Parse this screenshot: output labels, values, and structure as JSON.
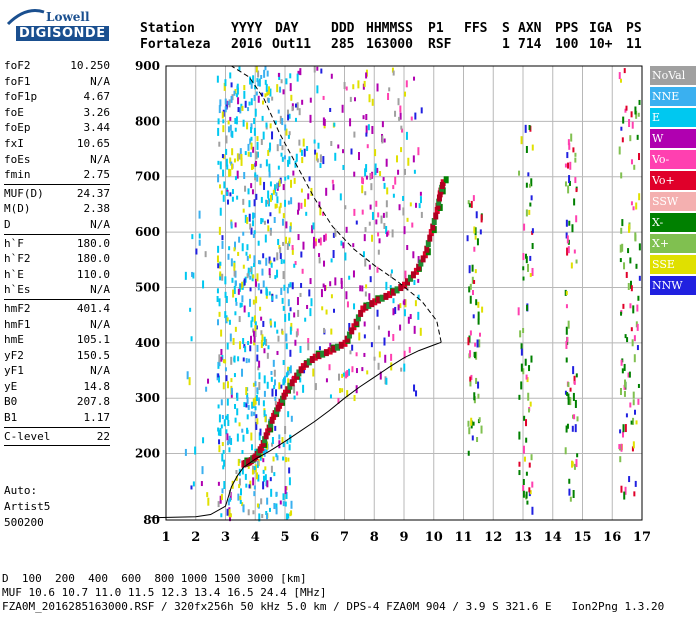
{
  "logo": {
    "line1": "Lowell",
    "line2": "DIGISONDE"
  },
  "header": {
    "labels": [
      "Station",
      "YYYY",
      "DAY",
      "DDD",
      "HHMMSS",
      "P1",
      "FFS",
      "S",
      "AXN",
      "PPS",
      "IGA",
      "PS"
    ],
    "values": [
      "Fortaleza",
      "2016",
      "Out11",
      "285",
      "163000",
      "RSF",
      "",
      "1",
      "714",
      "100",
      "10+",
      "11"
    ]
  },
  "params": [
    {
      "name": "foF2",
      "value": "10.250"
    },
    {
      "name": "foF1",
      "value": "N/A"
    },
    {
      "name": "foF1p",
      "value": "4.67"
    },
    {
      "name": "foE",
      "value": "3.26"
    },
    {
      "name": "foEp",
      "value": "3.44"
    },
    {
      "name": "fxI",
      "value": "10.65"
    },
    {
      "name": "foEs",
      "value": "N/A"
    },
    {
      "name": "fmin",
      "value": "2.75"
    },
    {
      "sep": true
    },
    {
      "name": "MUF(D)",
      "value": "24.37"
    },
    {
      "name": "M(D)",
      "value": "2.38"
    },
    {
      "name": "D",
      "value": "N/A"
    },
    {
      "sep": true
    },
    {
      "name": "h`F",
      "value": "180.0"
    },
    {
      "name": "h`F2",
      "value": "180.0"
    },
    {
      "name": "h`E",
      "value": "110.0"
    },
    {
      "name": "h`Es",
      "value": "N/A"
    },
    {
      "sep": true
    },
    {
      "name": "hmF2",
      "value": "401.4"
    },
    {
      "name": "hmF1",
      "value": "N/A"
    },
    {
      "name": "hmE",
      "value": "105.1"
    },
    {
      "name": "yF2",
      "value": "150.5"
    },
    {
      "name": "yF1",
      "value": "N/A"
    },
    {
      "name": "yE",
      "value": "14.8"
    },
    {
      "name": "B0",
      "value": "207.8"
    },
    {
      "name": "B1",
      "value": "1.17"
    },
    {
      "sep": true
    },
    {
      "name": "C-level",
      "value": "22"
    },
    {
      "sep": true
    }
  ],
  "auto": {
    "line1": "Auto:",
    "line2": "Artist5",
    "line3": "500200"
  },
  "legend": [
    {
      "label": "NoVal",
      "color": "#a0a0a0"
    },
    {
      "label": "NNE",
      "color": "#3ab0f0"
    },
    {
      "label": "E",
      "color": "#00c8f0"
    },
    {
      "label": "W",
      "color": "#b000b0"
    },
    {
      "label": "Vo-",
      "color": "#ff40b0"
    },
    {
      "label": "Vo+",
      "color": "#e0002a"
    },
    {
      "label": "SSW",
      "color": "#f4b0b0"
    },
    {
      "label": "X-",
      "color": "#008000"
    },
    {
      "label": "X+",
      "color": "#80c050"
    },
    {
      "label": "SSE",
      "color": "#e0e000"
    },
    {
      "label": "NNW",
      "color": "#2020e0"
    }
  ],
  "bottom": {
    "d_label": "D",
    "d_values": "  100  200  400  600  800 1000 1500 3000 [km]",
    "muf_label": "MUF",
    "muf_values": " 10.6 10.7 11.0 11.5 12.3 13.4 16.5 24.4 [MHz]",
    "footer": "FZA0M_2016285163000.RSF / 320fx256h 50 kHz 5.0 km / DPS-4 FZA0M 904 / 3.9 S 321.6 E   Ion2Png 1.3.20"
  },
  "chart_data": {
    "type": "scatter",
    "xlim": [
      1,
      17
    ],
    "ylim": [
      80,
      900
    ],
    "x_ticks": [
      1,
      2,
      3,
      4,
      5,
      6,
      7,
      8,
      9,
      10,
      11,
      12,
      13,
      14,
      15,
      16,
      17
    ],
    "y_ticks": [
      80,
      200,
      300,
      400,
      500,
      600,
      700,
      800,
      900
    ],
    "grid": true,
    "trace_x_plus": [
      [
        3.6,
        182
      ],
      [
        3.8,
        186
      ],
      [
        4.0,
        195
      ],
      [
        4.2,
        212
      ],
      [
        4.4,
        240
      ],
      [
        4.6,
        268
      ],
      [
        4.8,
        288
      ],
      [
        5.0,
        310
      ],
      [
        5.3,
        335
      ],
      [
        5.6,
        358
      ],
      [
        6.0,
        375
      ],
      [
        6.5,
        386
      ],
      [
        7.0,
        400
      ],
      [
        7.3,
        430
      ],
      [
        7.6,
        462
      ],
      [
        8.0,
        475
      ],
      [
        8.5,
        488
      ],
      [
        9.0,
        505
      ],
      [
        9.4,
        530
      ],
      [
        9.7,
        560
      ],
      [
        9.9,
        600
      ],
      [
        10.1,
        640
      ],
      [
        10.2,
        670
      ],
      [
        10.3,
        690
      ]
    ],
    "profile_true_height": [
      [
        0.5,
        84
      ],
      [
        2.0,
        86
      ],
      [
        2.5,
        90
      ],
      [
        3.0,
        105
      ],
      [
        3.2,
        140
      ],
      [
        3.4,
        160
      ],
      [
        3.6,
        175
      ],
      [
        4.0,
        190
      ],
      [
        4.5,
        205
      ],
      [
        5.0,
        222
      ],
      [
        5.5,
        240
      ],
      [
        6.0,
        258
      ],
      [
        6.5,
        278
      ],
      [
        7.0,
        300
      ],
      [
        7.5,
        320
      ],
      [
        8.0,
        338
      ],
      [
        8.5,
        356
      ],
      [
        9.0,
        373
      ],
      [
        9.5,
        386
      ],
      [
        10.0,
        396
      ],
      [
        10.25,
        401
      ]
    ],
    "profile_topside": [
      [
        10.25,
        401
      ],
      [
        10.1,
        440
      ],
      [
        9.6,
        475
      ],
      [
        8.8,
        510
      ],
      [
        8.0,
        540
      ],
      [
        7.3,
        570
      ],
      [
        6.6,
        610
      ],
      [
        6.0,
        660
      ],
      [
        5.4,
        720
      ],
      [
        4.8,
        780
      ],
      [
        4.3,
        840
      ],
      [
        3.8,
        880
      ],
      [
        3.2,
        900
      ]
    ]
  }
}
